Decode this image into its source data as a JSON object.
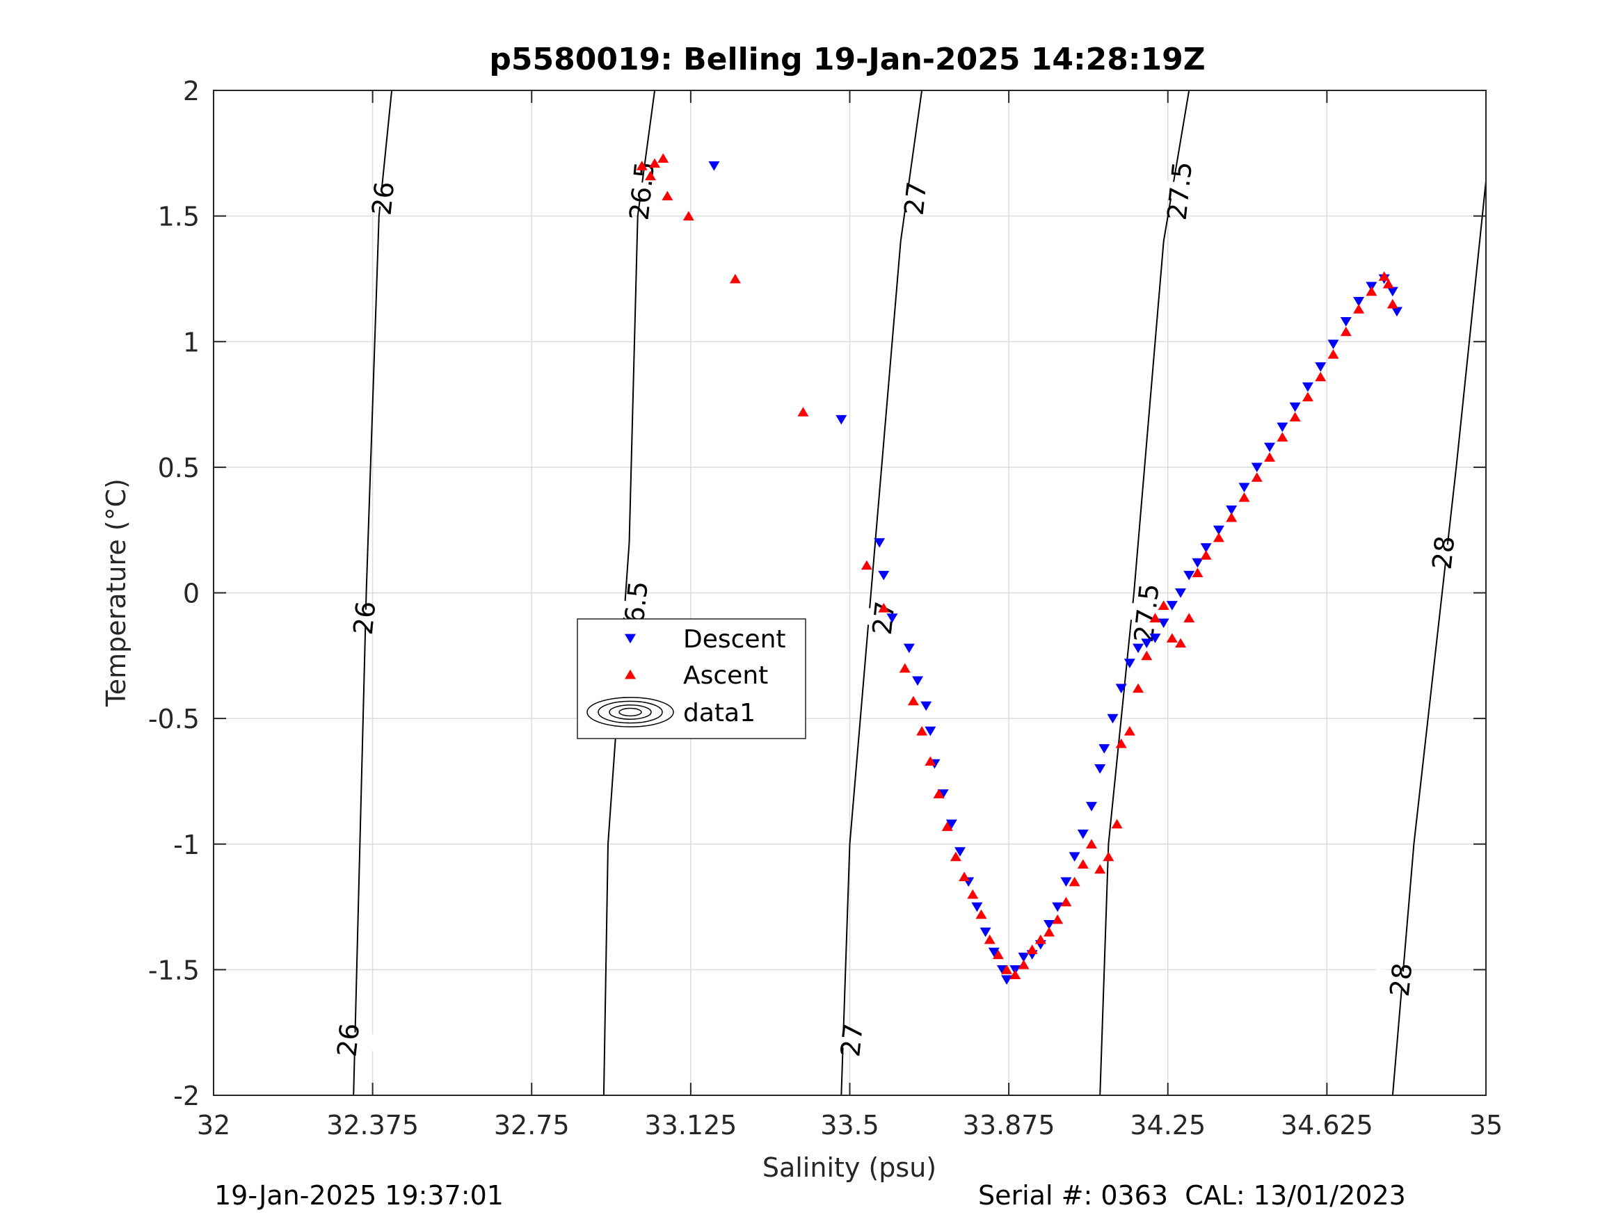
{
  "chart_data": {
    "type": "scatter",
    "title": "p5580019: Belling 19-Jan-2025 14:28:19Z",
    "xlabel": "Salinity (psu)",
    "ylabel": "Temperature (°C)",
    "xlim": [
      32,
      35
    ],
    "ylim": [
      -2,
      2
    ],
    "x_ticks": [
      32,
      32.375,
      32.75,
      33.125,
      33.5,
      33.875,
      34.25,
      34.625,
      35
    ],
    "x_tick_labels": [
      "32",
      "32.375",
      "32.75",
      "33.125",
      "33.5",
      "33.875",
      "34.25",
      "34.625",
      "35"
    ],
    "y_ticks": [
      -2,
      -1.5,
      -1,
      -0.5,
      0,
      0.5,
      1,
      1.5,
      2
    ],
    "y_tick_labels": [
      "-2",
      "-1.5",
      "-1",
      "-0.5",
      "0",
      "0.5",
      "1",
      "1.5",
      "2"
    ],
    "grid": true,
    "legend_position": "center-left",
    "legend": [
      {
        "label": "Descent",
        "marker": "triangle-down",
        "color": "#0000ff"
      },
      {
        "label": "Ascent",
        "marker": "triangle-up",
        "color": "#ff0000"
      },
      {
        "label": "data1",
        "marker": "contour",
        "color": "#000000"
      }
    ],
    "density_contours": [
      {
        "label": "26",
        "points": [
          [
            32.42,
            2
          ],
          [
            32.39,
            1.5
          ],
          [
            32.36,
            0
          ],
          [
            32.33,
            -2
          ]
        ],
        "label_positions": [
          [
            32.4,
            1.57
          ],
          [
            32.356,
            -0.1
          ],
          [
            32.318,
            -1.78
          ]
        ]
      },
      {
        "label": "26.5",
        "points": [
          [
            33.04,
            2
          ],
          [
            33.0,
            1.5
          ],
          [
            32.98,
            0.2
          ],
          [
            32.93,
            -1
          ],
          [
            32.92,
            -2
          ]
        ],
        "label_positions": [
          [
            33.01,
            1.6
          ],
          [
            32.995,
            -0.07
          ]
        ]
      },
      {
        "label": "27",
        "points": [
          [
            33.67,
            2
          ],
          [
            33.62,
            1.4
          ],
          [
            33.55,
            0
          ],
          [
            33.5,
            -1
          ],
          [
            33.48,
            -2
          ]
        ],
        "label_positions": [
          [
            33.655,
            1.57
          ],
          [
            33.58,
            -0.1
          ],
          [
            33.505,
            -1.78
          ]
        ]
      },
      {
        "label": "27.5",
        "points": [
          [
            34.3,
            2
          ],
          [
            34.24,
            1.4
          ],
          [
            34.17,
            0
          ],
          [
            34.11,
            -1
          ],
          [
            34.09,
            -2
          ]
        ],
        "label_positions": [
          [
            34.278,
            1.6
          ],
          [
            34.2,
            -0.08
          ]
        ]
      },
      {
        "label": "28",
        "points": [
          [
            35.0,
            1.64
          ],
          [
            34.93,
            0.5
          ],
          [
            34.83,
            -1
          ],
          [
            34.78,
            -2
          ]
        ],
        "label_positions": [
          [
            34.9,
            0.16
          ],
          [
            34.8,
            -1.54
          ]
        ]
      }
    ],
    "series": [
      {
        "name": "Descent",
        "marker": "triangle-down",
        "color": "#0000ff",
        "points": [
          [
            33.18,
            1.7
          ],
          [
            33.48,
            0.69
          ],
          [
            33.57,
            0.2
          ],
          [
            33.58,
            0.07
          ],
          [
            33.6,
            -0.1
          ],
          [
            33.64,
            -0.22
          ],
          [
            33.66,
            -0.35
          ],
          [
            33.68,
            -0.45
          ],
          [
            33.69,
            -0.55
          ],
          [
            33.7,
            -0.68
          ],
          [
            33.72,
            -0.8
          ],
          [
            33.74,
            -0.92
          ],
          [
            33.76,
            -1.03
          ],
          [
            33.78,
            -1.15
          ],
          [
            33.8,
            -1.25
          ],
          [
            33.82,
            -1.35
          ],
          [
            33.84,
            -1.43
          ],
          [
            33.86,
            -1.5
          ],
          [
            33.87,
            -1.54
          ],
          [
            33.89,
            -1.5
          ],
          [
            33.91,
            -1.45
          ],
          [
            33.93,
            -1.44
          ],
          [
            33.95,
            -1.4
          ],
          [
            33.97,
            -1.32
          ],
          [
            33.99,
            -1.25
          ],
          [
            34.01,
            -1.15
          ],
          [
            34.03,
            -1.05
          ],
          [
            34.05,
            -0.96
          ],
          [
            34.07,
            -0.85
          ],
          [
            34.09,
            -0.7
          ],
          [
            34.1,
            -0.62
          ],
          [
            34.12,
            -0.5
          ],
          [
            34.14,
            -0.38
          ],
          [
            34.16,
            -0.28
          ],
          [
            34.18,
            -0.22
          ],
          [
            34.2,
            -0.2
          ],
          [
            34.22,
            -0.18
          ],
          [
            34.24,
            -0.12
          ],
          [
            34.26,
            -0.05
          ],
          [
            34.28,
            0.0
          ],
          [
            34.3,
            0.07
          ],
          [
            34.32,
            0.12
          ],
          [
            34.34,
            0.18
          ],
          [
            34.37,
            0.25
          ],
          [
            34.4,
            0.33
          ],
          [
            34.43,
            0.42
          ],
          [
            34.46,
            0.5
          ],
          [
            34.49,
            0.58
          ],
          [
            34.52,
            0.66
          ],
          [
            34.55,
            0.74
          ],
          [
            34.58,
            0.82
          ],
          [
            34.61,
            0.9
          ],
          [
            34.64,
            0.99
          ],
          [
            34.67,
            1.08
          ],
          [
            34.7,
            1.16
          ],
          [
            34.73,
            1.22
          ],
          [
            34.76,
            1.25
          ],
          [
            34.78,
            1.2
          ],
          [
            34.79,
            1.12
          ]
        ]
      },
      {
        "name": "Ascent",
        "marker": "triangle-up",
        "color": "#ff0000",
        "points": [
          [
            33.01,
            1.7
          ],
          [
            33.03,
            1.66
          ],
          [
            33.04,
            1.71
          ],
          [
            33.06,
            1.73
          ],
          [
            33.07,
            1.58
          ],
          [
            33.12,
            1.5
          ],
          [
            33.23,
            1.25
          ],
          [
            33.39,
            0.72
          ],
          [
            33.54,
            0.11
          ],
          [
            33.58,
            -0.06
          ],
          [
            33.63,
            -0.3
          ],
          [
            33.65,
            -0.43
          ],
          [
            33.67,
            -0.55
          ],
          [
            33.69,
            -0.67
          ],
          [
            33.71,
            -0.8
          ],
          [
            33.73,
            -0.93
          ],
          [
            33.75,
            -1.05
          ],
          [
            33.77,
            -1.13
          ],
          [
            33.79,
            -1.2
          ],
          [
            33.81,
            -1.28
          ],
          [
            33.83,
            -1.38
          ],
          [
            33.85,
            -1.44
          ],
          [
            33.87,
            -1.5
          ],
          [
            33.89,
            -1.52
          ],
          [
            33.91,
            -1.48
          ],
          [
            33.93,
            -1.42
          ],
          [
            33.95,
            -1.38
          ],
          [
            33.97,
            -1.35
          ],
          [
            33.99,
            -1.3
          ],
          [
            34.01,
            -1.23
          ],
          [
            34.03,
            -1.15
          ],
          [
            34.05,
            -1.08
          ],
          [
            34.07,
            -1.0
          ],
          [
            34.09,
            -1.1
          ],
          [
            34.11,
            -1.05
          ],
          [
            34.13,
            -0.92
          ],
          [
            34.14,
            -0.6
          ],
          [
            34.16,
            -0.55
          ],
          [
            34.18,
            -0.38
          ],
          [
            34.2,
            -0.25
          ],
          [
            34.22,
            -0.1
          ],
          [
            34.24,
            -0.05
          ],
          [
            34.26,
            -0.18
          ],
          [
            34.28,
            -0.2
          ],
          [
            34.3,
            -0.1
          ],
          [
            34.32,
            0.08
          ],
          [
            34.34,
            0.15
          ],
          [
            34.37,
            0.22
          ],
          [
            34.4,
            0.3
          ],
          [
            34.43,
            0.38
          ],
          [
            34.46,
            0.46
          ],
          [
            34.49,
            0.54
          ],
          [
            34.52,
            0.62
          ],
          [
            34.55,
            0.7
          ],
          [
            34.58,
            0.78
          ],
          [
            34.61,
            0.86
          ],
          [
            34.64,
            0.95
          ],
          [
            34.67,
            1.04
          ],
          [
            34.7,
            1.13
          ],
          [
            34.73,
            1.2
          ],
          [
            34.76,
            1.26
          ],
          [
            34.77,
            1.23
          ],
          [
            34.78,
            1.15
          ]
        ]
      }
    ]
  },
  "footer": {
    "left": "19-Jan-2025 19:37:01",
    "right": "Serial #: 0363  CAL: 13/01/2023"
  }
}
